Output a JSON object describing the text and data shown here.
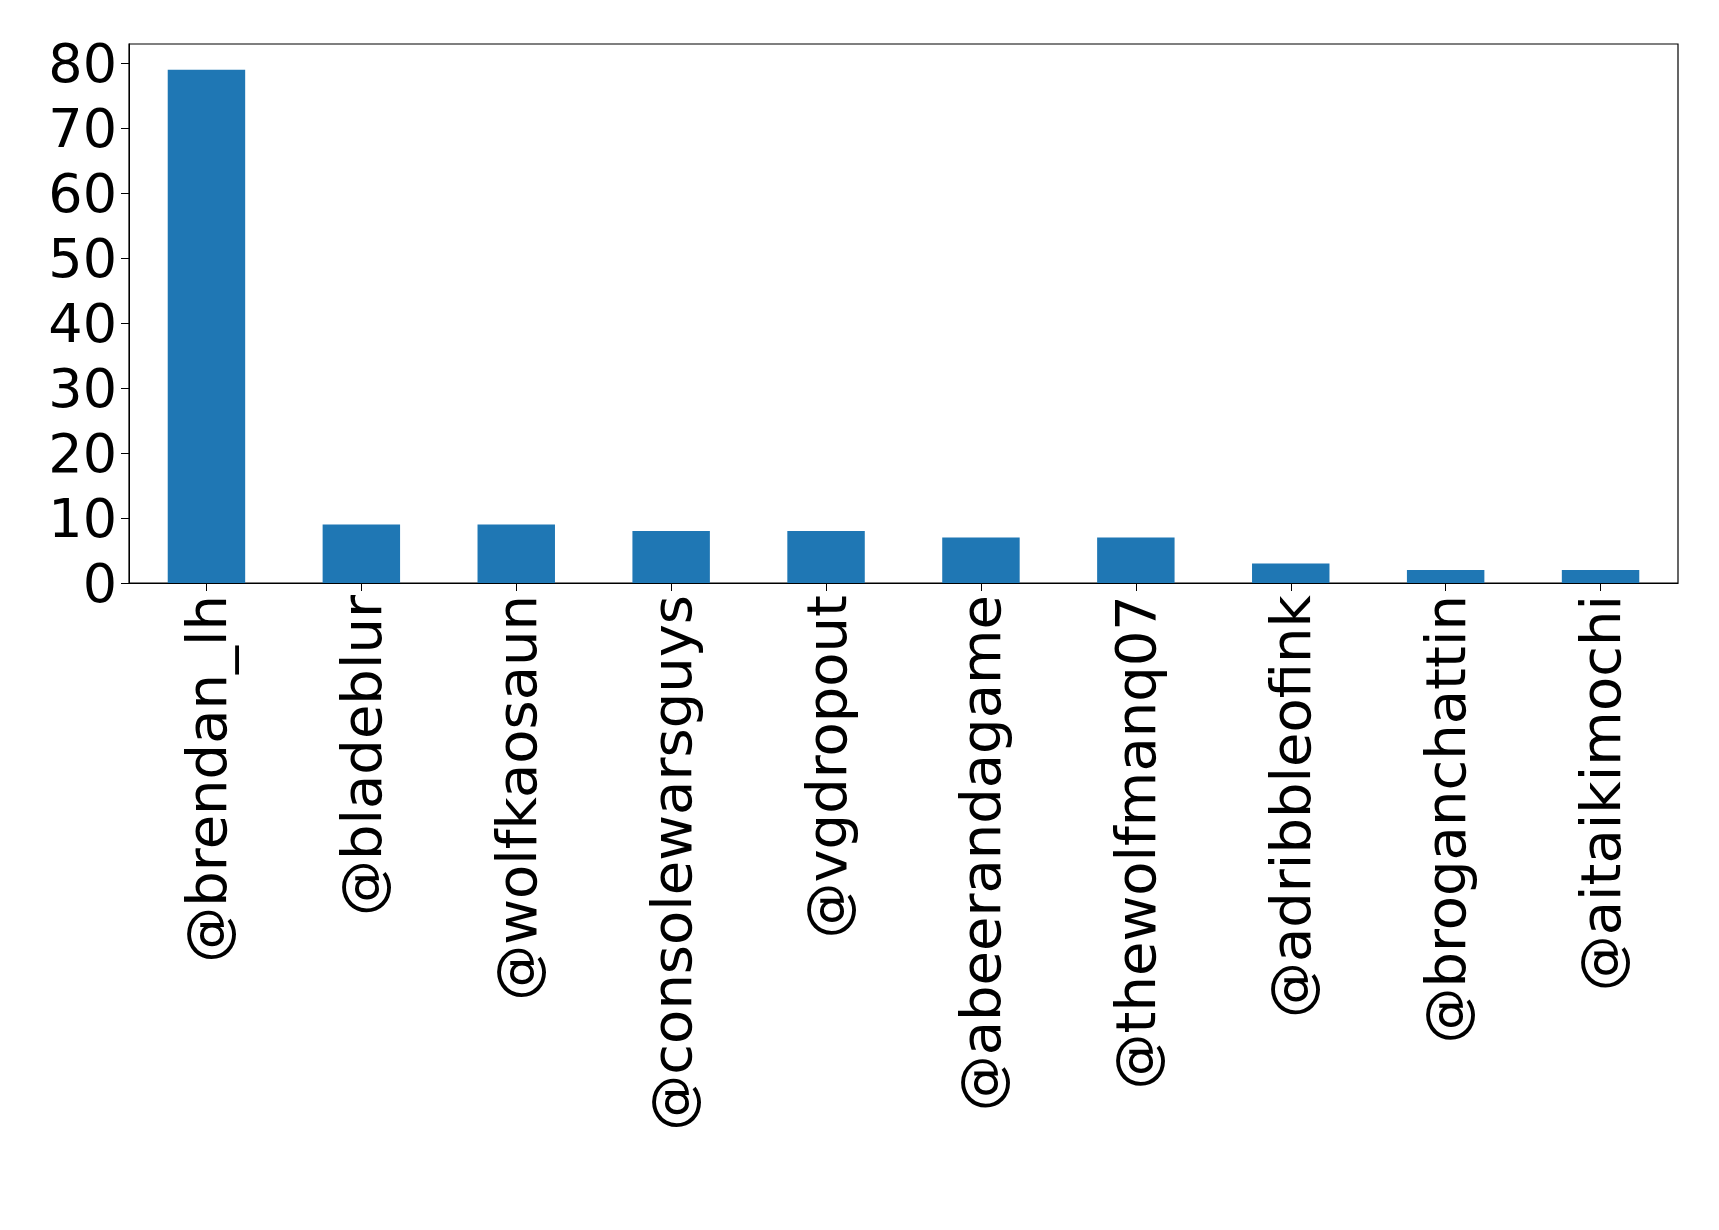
{
  "chart_data": {
    "type": "bar",
    "categories": [
      "@brendan_lh",
      "@bladeblur",
      "@wolfkaosaun",
      "@consolewarsguys",
      "@vgdropout",
      "@abeerandagame",
      "@thewolfmanq07",
      "@adribbleofink",
      "@broganchattin",
      "@aitaikimochi"
    ],
    "values": [
      79,
      9,
      9,
      8,
      8,
      7,
      7,
      3,
      2,
      2
    ],
    "color": "#1f77b4",
    "ylim": [
      0,
      82.95
    ],
    "yticks": [
      0,
      10,
      20,
      30,
      40,
      50,
      60,
      70,
      80
    ],
    "grid": false
  }
}
